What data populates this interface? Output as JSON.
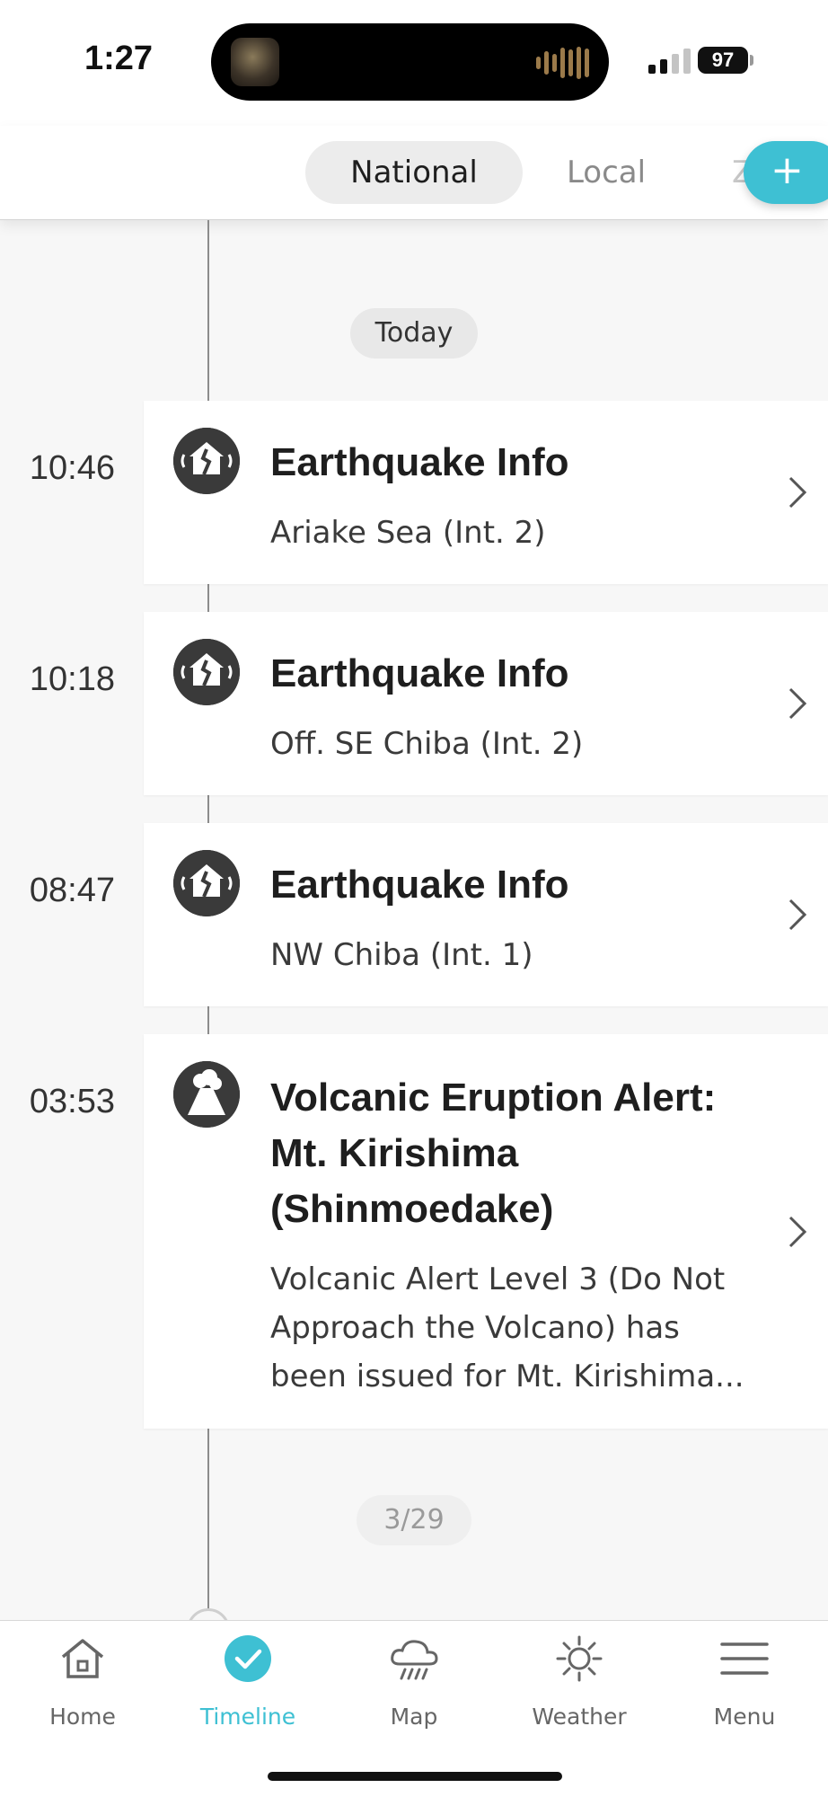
{
  "status_bar": {
    "time": "1:27",
    "battery": "97"
  },
  "header": {
    "tabs": [
      {
        "label": "National",
        "selected": true
      },
      {
        "label": "Local",
        "selected": false
      },
      {
        "label": "Z",
        "selected": false
      }
    ],
    "add_label": "+"
  },
  "timeline": {
    "groups": [
      {
        "date_label": "Today"
      },
      {
        "date_label": "3/29"
      }
    ],
    "entries": [
      {
        "time": "10:46",
        "icon": "earthquake-icon",
        "title": "Earthquake Info",
        "subtitle": "Ariake Sea (Int. 2)"
      },
      {
        "time": "10:18",
        "icon": "earthquake-icon",
        "title": "Earthquake Info",
        "subtitle": "Off. SE Chiba (Int. 2)"
      },
      {
        "time": "08:47",
        "icon": "earthquake-icon",
        "title": "Earthquake Info",
        "subtitle": "NW Chiba (Int. 1)"
      },
      {
        "time": "03:53",
        "icon": "volcano-icon",
        "title_lines": [
          "Volcanic Eruption Alert:",
          "Mt. Kirishima",
          "(Shinmoedake)"
        ],
        "subtitle_lines": [
          "Volcanic Alert Level 3 (Do Not",
          "Approach the Volcano) has",
          "been issued for Mt. Kirishima..."
        ]
      }
    ]
  },
  "bottom_nav": {
    "items": [
      {
        "label": "Home",
        "icon": "home-icon",
        "active": false
      },
      {
        "label": "Timeline",
        "icon": "check-circle-icon",
        "active": true
      },
      {
        "label": "Map",
        "icon": "rain-cloud-icon",
        "active": false
      },
      {
        "label": "Weather",
        "icon": "sun-icon",
        "active": false
      },
      {
        "label": "Menu",
        "icon": "menu-icon",
        "active": false
      }
    ]
  },
  "colors": {
    "accent": "#3ec0d3",
    "background": "#f7f7f7",
    "card": "#ffffff",
    "icon_dark": "#3a3a3a"
  }
}
